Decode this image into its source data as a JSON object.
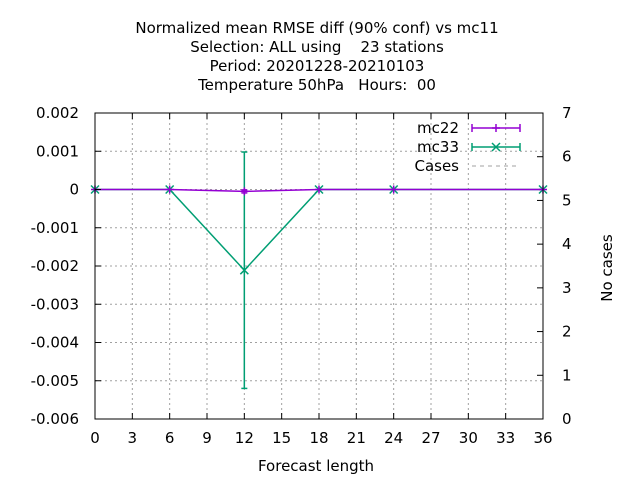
{
  "chart_data": {
    "type": "line",
    "title_lines": [
      "Normalized mean RMSE diff (90% conf) vs mc11",
      "Selection: ALL using    23 stations",
      "Period: 20201228-20210103",
      "Temperature 50hPa   Hours:  00"
    ],
    "xlabel": "Forecast length",
    "ylabel": "",
    "y2label": "No cases",
    "xlim": [
      0,
      36
    ],
    "ylim": [
      -0.006,
      0.002
    ],
    "y2lim": [
      0,
      7
    ],
    "x_ticks": [
      "0",
      "3",
      "6",
      "9",
      "12",
      "15",
      "18",
      "21",
      "24",
      "27",
      "30",
      "33",
      "36"
    ],
    "y_ticks": [
      "0.002",
      "0.001",
      "0",
      "-0.001",
      "-0.002",
      "-0.003",
      "-0.004",
      "-0.005",
      "-0.006"
    ],
    "y2_ticks": [
      "7",
      "6",
      "5",
      "4",
      "3",
      "2",
      "1",
      "0"
    ],
    "grid": true,
    "legend_position": "top-right",
    "series": [
      {
        "name": "mc22",
        "color": "#9400d3",
        "marker": "plus",
        "points": [
          {
            "x": 0,
            "y": 0
          },
          {
            "x": 6,
            "y": 0
          },
          {
            "x": 12,
            "y": -5e-05,
            "err_low": -9e-05,
            "err_high": -1e-05
          },
          {
            "x": 18,
            "y": 0
          },
          {
            "x": 24,
            "y": 0
          },
          {
            "x": 36,
            "y": 0
          }
        ]
      },
      {
        "name": "mc33",
        "color": "#009e73",
        "marker": "x",
        "points": [
          {
            "x": 0,
            "y": 0
          },
          {
            "x": 6,
            "y": 0
          },
          {
            "x": 12,
            "y": -0.00211,
            "err_low": -0.0052,
            "err_high": 0.00098
          },
          {
            "x": 18,
            "y": 0
          },
          {
            "x": 24,
            "y": 0
          },
          {
            "x": 36,
            "y": 0
          }
        ]
      }
    ],
    "cases": {
      "name": "Cases",
      "color": "#a0a0a0",
      "style": "dashed",
      "axis": "y2",
      "points": [
        {
          "x": 0,
          "y": 7
        },
        {
          "x": 36,
          "y": 7
        }
      ]
    }
  }
}
